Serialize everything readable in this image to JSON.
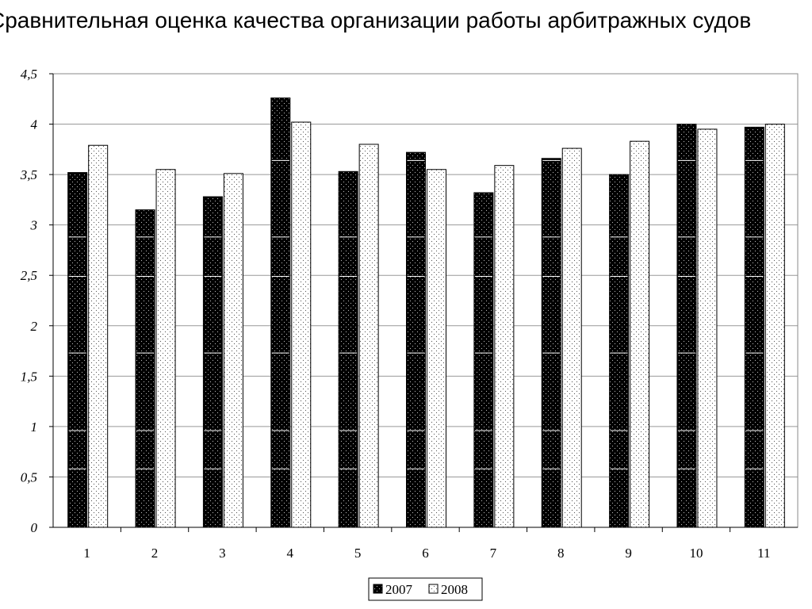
{
  "chart_data": {
    "type": "bar",
    "title": "Сравнительная оценка качества организации работы арбитражных судов",
    "categories": [
      "1",
      "2",
      "3",
      "4",
      "5",
      "6",
      "7",
      "8",
      "9",
      "10",
      "11"
    ],
    "series": [
      {
        "name": "2007",
        "values": [
          3.52,
          3.15,
          3.28,
          4.26,
          3.53,
          3.72,
          3.32,
          3.66,
          3.5,
          4.0,
          3.97
        ],
        "color": "#000000"
      },
      {
        "name": "2008",
        "values": [
          3.79,
          3.55,
          3.51,
          4.02,
          3.8,
          3.55,
          3.59,
          3.76,
          3.83,
          3.95,
          4.0
        ],
        "color": "#ffffff"
      }
    ],
    "yticks": [
      "0",
      "0,5",
      "1",
      "1,5",
      "2",
      "2,5",
      "3",
      "3,5",
      "4",
      "4,5"
    ],
    "ylim": [
      0,
      4.5
    ],
    "grid": true,
    "legend_position": "bottom"
  }
}
